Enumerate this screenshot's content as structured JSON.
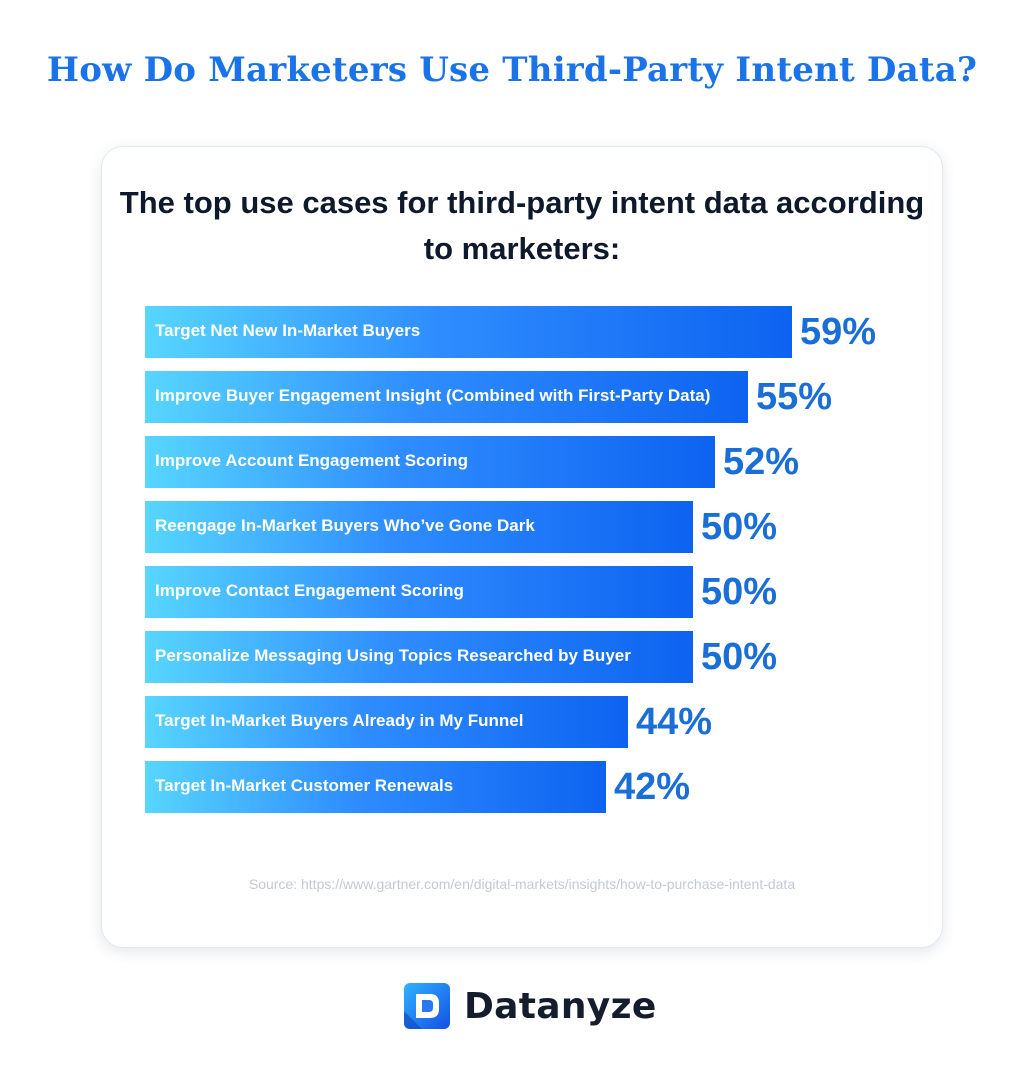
{
  "header": {
    "title": "How Do Marketers Use Third-Party Intent Data?"
  },
  "chart_data": {
    "type": "bar",
    "orientation": "horizontal",
    "title": "The top use cases for third-party intent data according to marketers:",
    "categories": [
      "Target Net New In-Market Buyers",
      "Improve Buyer Engagement Insight (Combined with First-Party Data)",
      "Improve Account Engagement Scoring",
      "Reengage In-Market Buyers Who’ve Gone Dark",
      "Improve Contact Engagement Scoring",
      "Personalize Messaging Using Topics Researched by Buyer",
      "Target In-Market Buyers Already in My Funnel",
      "Target In-Market Customer Renewals"
    ],
    "values": [
      59,
      55,
      52,
      50,
      50,
      50,
      44,
      42
    ],
    "value_labels": [
      "59%",
      "55%",
      "52%",
      "50%",
      "50%",
      "50%",
      "44%",
      "42%"
    ],
    "unit": "%",
    "grid": false,
    "legend": "none"
  },
  "source": "Source: https://www.gartner.com/en/digital-markets/insights/how-to-purchase-intent-data",
  "brand": {
    "name": "Datanyze",
    "icon": "datanyze-logo-icon"
  },
  "colors": {
    "title": "#1a73e8",
    "bar_start": "#57d6ff",
    "bar_end": "#0d63f0",
    "value_text": "#1a6ed8",
    "heading": "#0e1a2b"
  }
}
